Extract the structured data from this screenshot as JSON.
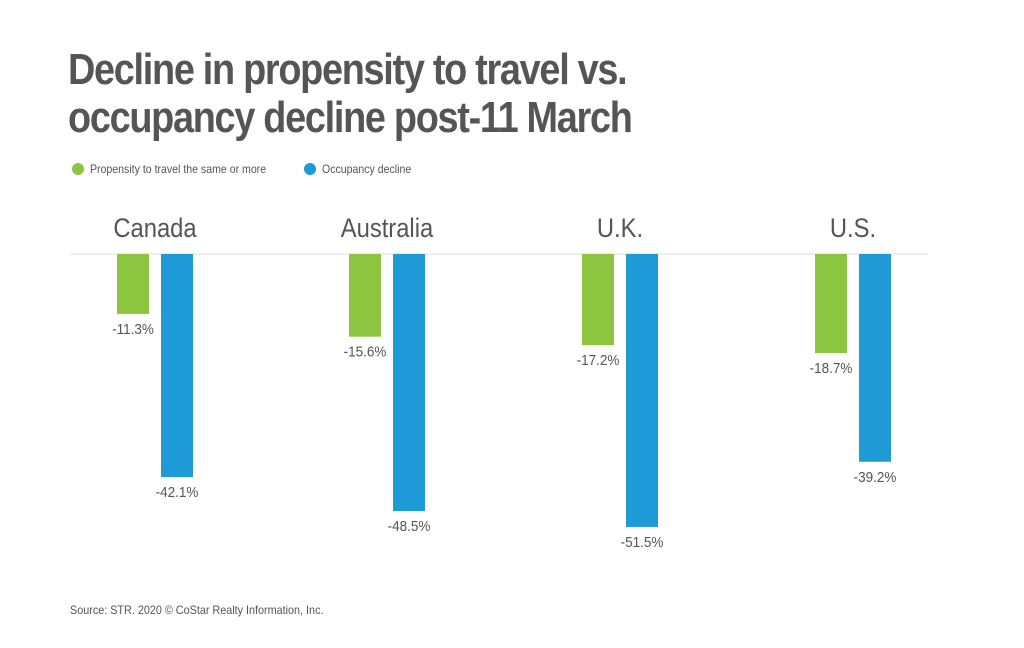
{
  "title_line1": "Decline in propensity to travel vs.",
  "title_line2": "occupancy decline post-11 March",
  "source": "Source: STR. 2020 © CoStar Realty Information, Inc.",
  "colors": {
    "propensity": "#8cc540",
    "occupancy": "#1e9ad7",
    "text": "#555555",
    "baseline": "#dddddd"
  },
  "chart_data": {
    "type": "bar",
    "categories": [
      "Canada",
      "Australia",
      "U.K.",
      "U.S."
    ],
    "series": [
      {
        "name": "Propensity to travel the same or more",
        "values": [
          -11.3,
          -15.6,
          -17.2,
          -18.7
        ],
        "labels": [
          "-11.3%",
          "-15.6%",
          "-17.2%",
          "-18.7%"
        ]
      },
      {
        "name": "Occupancy decline",
        "values": [
          -42.1,
          -48.5,
          -51.5,
          -39.2
        ],
        "labels": [
          "-42.1%",
          "-48.5%",
          "-51.5%",
          "-39.2%"
        ]
      }
    ],
    "title": "Decline in propensity to travel vs. occupancy decline post-11 March",
    "legend_position": "top-left",
    "grid": false
  }
}
